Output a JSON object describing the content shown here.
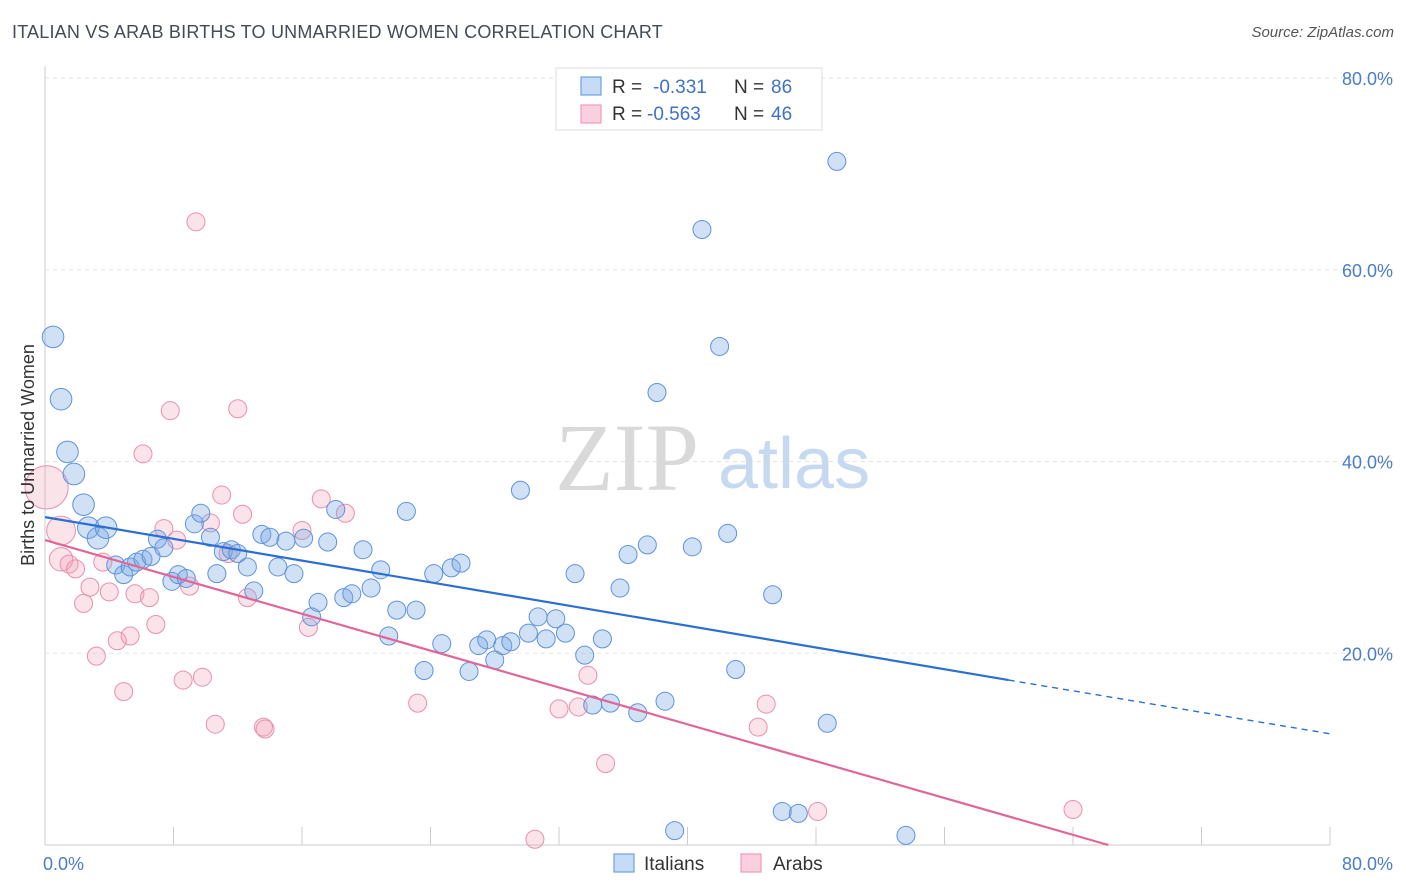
{
  "title": "ITALIAN VS ARAB BIRTHS TO UNMARRIED WOMEN CORRELATION CHART",
  "source": "Source: ZipAtlas.com",
  "watermark": {
    "zip": "ZIP",
    "atlas": "atlas"
  },
  "colors": {
    "italians": "#6ea0e0",
    "arabs": "#f09ab5",
    "italians_line": "#2b6fd1",
    "arabs_line": "#e0669a"
  },
  "legend_top": [
    {
      "r_label": "R = ",
      "r_value": "-0.331",
      "n_label": "N = ",
      "n_value": "86"
    },
    {
      "r_label": "R = ",
      "r_value": "-0.563",
      "n_label": "N = ",
      "n_value": "46"
    }
  ],
  "legend_bottom": [
    "Italians",
    "Arabs"
  ],
  "chart_data": {
    "type": "scatter",
    "title": "ITALIAN VS ARAB BIRTHS TO UNMARRIED WOMEN CORRELATION CHART",
    "xlabel": "",
    "ylabel": "Births to Unmarried Women",
    "xlim": [
      0,
      80
    ],
    "ylim": [
      0,
      80
    ],
    "x_tick_labels": [
      "0.0%",
      "80.0%"
    ],
    "y_ticks": [
      20,
      40,
      60,
      80
    ],
    "y_tick_labels": [
      "20.0%",
      "40.0%",
      "60.0%",
      "80.0%"
    ],
    "grid": true,
    "legend_position": "top-center",
    "series": [
      {
        "name": "Italians",
        "regression": {
          "x0": 0,
          "y0": 34.2,
          "x1": 60,
          "y1": 17.2,
          "dash_to_x": 80,
          "dash_to_y": 11.6
        },
        "points": [
          [
            0.5,
            53.0,
            1.2
          ],
          [
            1.0,
            46.5,
            1.2
          ],
          [
            1.4,
            41.0,
            1.2
          ],
          [
            1.8,
            38.7,
            1.2
          ],
          [
            2.4,
            35.5,
            1.2
          ],
          [
            2.7,
            33.1,
            1.2
          ],
          [
            3.3,
            32.0,
            1.2
          ],
          [
            3.8,
            33.1,
            1.2
          ],
          [
            4.4,
            29.2,
            1.0
          ],
          [
            4.9,
            28.2,
            1.0
          ],
          [
            5.3,
            29.0,
            1.0
          ],
          [
            5.7,
            29.5,
            1.0
          ],
          [
            6.1,
            29.8,
            1.0
          ],
          [
            6.6,
            30.1,
            1.0
          ],
          [
            7.0,
            31.9,
            1.0
          ],
          [
            7.4,
            31.0,
            1.0
          ],
          [
            7.9,
            27.5,
            1.0
          ],
          [
            8.3,
            28.2,
            1.0
          ],
          [
            8.8,
            27.8,
            1.0
          ],
          [
            9.3,
            33.5,
            1.0
          ],
          [
            9.7,
            34.6,
            1.0
          ],
          [
            10.3,
            32.1,
            1.0
          ],
          [
            10.7,
            28.3,
            1.0
          ],
          [
            11.1,
            30.6,
            1.0
          ],
          [
            11.6,
            30.8,
            1.0
          ],
          [
            12.0,
            30.4,
            1.0
          ],
          [
            12.6,
            29.0,
            1.0
          ],
          [
            13.0,
            26.5,
            1.0
          ],
          [
            13.5,
            32.4,
            1.0
          ],
          [
            14.0,
            32.1,
            1.0
          ],
          [
            14.5,
            29.0,
            1.0
          ],
          [
            15.0,
            31.7,
            1.0
          ],
          [
            15.5,
            28.3,
            1.0
          ],
          [
            16.1,
            32.0,
            1.0
          ],
          [
            16.6,
            23.8,
            1.0
          ],
          [
            17.0,
            25.3,
            1.0
          ],
          [
            17.6,
            31.6,
            1.0
          ],
          [
            18.1,
            35.0,
            1.0
          ],
          [
            18.6,
            25.8,
            1.0
          ],
          [
            19.1,
            26.2,
            1.0
          ],
          [
            19.8,
            30.8,
            1.0
          ],
          [
            20.3,
            26.8,
            1.0
          ],
          [
            20.9,
            28.7,
            1.0
          ],
          [
            21.4,
            21.8,
            1.0
          ],
          [
            21.9,
            24.5,
            1.0
          ],
          [
            22.5,
            34.8,
            1.0
          ],
          [
            23.1,
            24.5,
            1.0
          ],
          [
            23.6,
            18.2,
            1.0
          ],
          [
            24.2,
            28.3,
            1.0
          ],
          [
            24.7,
            21.0,
            1.0
          ],
          [
            25.3,
            28.9,
            1.0
          ],
          [
            25.9,
            29.4,
            1.0
          ],
          [
            26.4,
            18.1,
            1.0
          ],
          [
            27.0,
            20.8,
            1.0
          ],
          [
            27.5,
            21.4,
            1.0
          ],
          [
            28.0,
            19.3,
            1.0
          ],
          [
            28.5,
            20.8,
            1.0
          ],
          [
            29.0,
            21.2,
            1.0
          ],
          [
            29.6,
            37.0,
            1.0
          ],
          [
            30.1,
            22.1,
            1.0
          ],
          [
            30.7,
            23.8,
            1.0
          ],
          [
            31.2,
            21.5,
            1.0
          ],
          [
            31.8,
            23.6,
            1.0
          ],
          [
            32.4,
            22.1,
            1.0
          ],
          [
            33.0,
            28.3,
            1.0
          ],
          [
            33.6,
            19.8,
            1.0
          ],
          [
            34.1,
            14.6,
            1.0
          ],
          [
            34.7,
            21.5,
            1.0
          ],
          [
            35.2,
            14.8,
            1.0
          ],
          [
            35.8,
            26.8,
            1.0
          ],
          [
            36.3,
            30.3,
            1.0
          ],
          [
            36.9,
            13.8,
            1.0
          ],
          [
            37.5,
            31.3,
            1.0
          ],
          [
            38.1,
            47.2,
            1.0
          ],
          [
            38.6,
            15.0,
            1.0
          ],
          [
            39.2,
            1.5,
            1.0
          ],
          [
            40.3,
            31.1,
            1.0
          ],
          [
            40.9,
            64.2,
            1.0
          ],
          [
            42.0,
            52.0,
            1.0
          ],
          [
            42.5,
            32.5,
            1.0
          ],
          [
            43.0,
            18.3,
            1.0
          ],
          [
            45.3,
            26.1,
            1.0
          ],
          [
            45.9,
            3.5,
            1.0
          ],
          [
            46.9,
            3.3,
            1.0
          ],
          [
            48.7,
            12.7,
            1.0
          ],
          [
            49.3,
            71.3,
            1.0
          ],
          [
            53.6,
            1.0,
            1.0
          ]
        ]
      },
      {
        "name": "Arabs",
        "regression": {
          "x0": 0,
          "y0": 31.8,
          "x1": 66.2,
          "y1": 0
        },
        "points": [
          [
            0.1,
            37.3,
            2.4
          ],
          [
            1.0,
            32.8,
            1.6
          ],
          [
            1.0,
            29.8,
            1.3
          ],
          [
            1.5,
            29.3,
            1.0
          ],
          [
            1.9,
            28.8,
            1.0
          ],
          [
            2.4,
            25.2,
            1.0
          ],
          [
            2.8,
            26.9,
            1.0
          ],
          [
            3.2,
            19.7,
            1.0
          ],
          [
            3.6,
            29.5,
            1.0
          ],
          [
            4.0,
            26.4,
            1.0
          ],
          [
            4.5,
            21.3,
            1.0
          ],
          [
            4.9,
            16.0,
            1.0
          ],
          [
            5.3,
            21.8,
            1.0
          ],
          [
            5.6,
            26.2,
            1.0
          ],
          [
            6.1,
            40.8,
            1.0
          ],
          [
            6.5,
            25.8,
            1.0
          ],
          [
            6.9,
            23.0,
            1.0
          ],
          [
            7.4,
            33.0,
            1.0
          ],
          [
            7.8,
            45.3,
            1.0
          ],
          [
            8.2,
            31.8,
            1.0
          ],
          [
            8.6,
            17.2,
            1.0
          ],
          [
            9.0,
            27.0,
            1.0
          ],
          [
            9.4,
            65.0,
            1.0
          ],
          [
            9.8,
            17.5,
            1.0
          ],
          [
            10.3,
            33.6,
            1.0
          ],
          [
            10.6,
            12.6,
            1.0
          ],
          [
            11.0,
            36.5,
            1.0
          ],
          [
            11.4,
            30.4,
            1.0
          ],
          [
            12.0,
            45.5,
            1.0
          ],
          [
            12.3,
            34.5,
            1.0
          ],
          [
            12.6,
            25.8,
            1.0
          ],
          [
            13.6,
            12.3,
            1.0
          ],
          [
            13.7,
            12.1,
            1.0
          ],
          [
            16.0,
            32.8,
            1.0
          ],
          [
            16.4,
            22.7,
            1.0
          ],
          [
            17.2,
            36.1,
            1.0
          ],
          [
            18.7,
            34.6,
            1.0
          ],
          [
            23.2,
            14.8,
            1.0
          ],
          [
            30.5,
            0.6,
            1.0
          ],
          [
            32.0,
            14.2,
            1.0
          ],
          [
            33.2,
            14.4,
            1.0
          ],
          [
            33.8,
            17.7,
            1.0
          ],
          [
            34.9,
            8.5,
            1.0
          ],
          [
            44.4,
            12.3,
            1.0
          ],
          [
            44.9,
            14.7,
            1.0
          ],
          [
            48.1,
            3.5,
            1.0
          ],
          [
            64.0,
            3.7,
            1.0
          ]
        ]
      }
    ]
  }
}
